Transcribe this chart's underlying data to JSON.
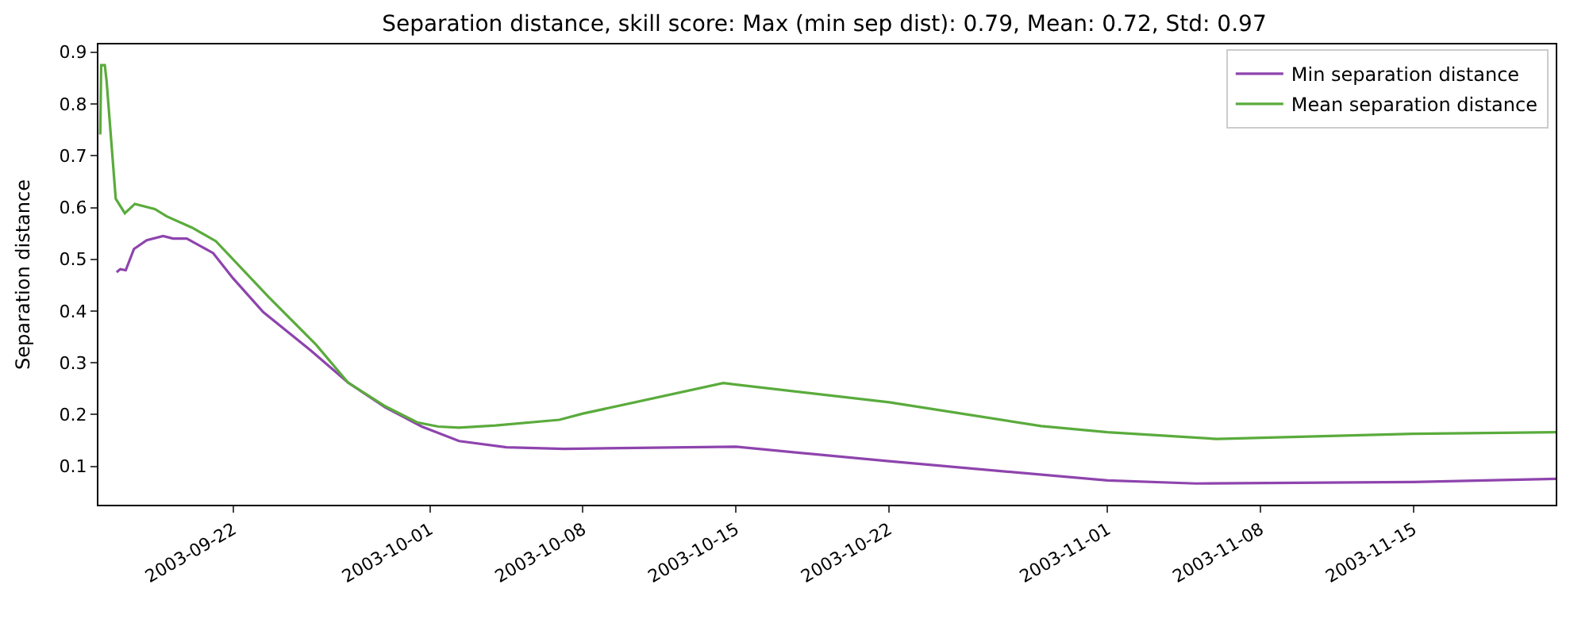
{
  "chart_data": {
    "type": "line",
    "title": "Separation distance, skill score: Max (min sep dist): 0.79, Mean: 0.72, Std: 0.97",
    "ylabel": "Separation distance",
    "series": [
      {
        "name": "Min separation distance",
        "color": "#8e44ad",
        "x": [
          "2003-09-16T16:00",
          "2003-09-16T20:00",
          "2003-09-17T02:00",
          "2003-09-17T11:00",
          "2003-09-18T01:00",
          "2003-09-18T19:00",
          "2003-09-19T06:00",
          "2003-09-19T21:00",
          "2003-09-21T02:00",
          "2003-09-22",
          "2003-09-23T09:00",
          "2003-09-25T13:00",
          "2003-09-27T06:00",
          "2003-09-28T23:00",
          "2003-09-30T15:00",
          "2003-10-02T08:00",
          "2003-10-04T12:00",
          "2003-10-07T03:00",
          "2003-10-15",
          "2003-10-22",
          "2003-11-01",
          "2003-11-05T01:00",
          "2003-11-15",
          "2003-11-21T12:00"
        ],
        "values": [
          0.475,
          0.481,
          0.479,
          0.52,
          0.537,
          0.545,
          0.54,
          0.54,
          0.512,
          0.463,
          0.398,
          0.324,
          0.262,
          0.214,
          0.177,
          0.149,
          0.137,
          0.134,
          0.138,
          0.11,
          0.073,
          0.067,
          0.07,
          0.076
        ]
      },
      {
        "name": "Mean separation distance",
        "color": "#5aab3c",
        "x": [
          "2003-09-15T22:00",
          "2003-09-15T23:00",
          "2003-09-16T03:00",
          "2003-09-16T05:00",
          "2003-09-16T15:00",
          "2003-09-17T01:00",
          "2003-09-17T12:00",
          "2003-09-18T10:00",
          "2003-09-18T23:00",
          "2003-09-20T03:00",
          "2003-09-21T05:00",
          "2003-09-23T15:00",
          "2003-09-25T19:00",
          "2003-09-27T06:00",
          "2003-09-28T23:00",
          "2003-09-30T10:00",
          "2003-10-01T09:00",
          "2003-10-02T08:00",
          "2003-10-04T00:00",
          "2003-10-06T22:00",
          "2003-10-08",
          "2003-10-14T10:00",
          "2003-10-15",
          "2003-10-22",
          "2003-10-28T23:00",
          "2003-11-01",
          "2003-11-06",
          "2003-11-15",
          "2003-11-21T12:00"
        ],
        "values": [
          0.741,
          0.875,
          0.875,
          0.844,
          0.617,
          0.589,
          0.607,
          0.597,
          0.583,
          0.561,
          0.535,
          0.427,
          0.335,
          0.262,
          0.216,
          0.185,
          0.177,
          0.175,
          0.179,
          0.19,
          0.202,
          0.261,
          0.258,
          0.224,
          0.178,
          0.166,
          0.153,
          0.163,
          0.166
        ]
      }
    ],
    "xlim": [
      "2003-09-15T20:00",
      "2003-11-21T12:00"
    ],
    "xticks": [
      "2003-09-22",
      "2003-10-01",
      "2003-10-08",
      "2003-10-15",
      "2003-10-22",
      "2003-11-01",
      "2003-11-08",
      "2003-11-15"
    ],
    "ylim": [
      0.026,
      0.915
    ],
    "yticks": [
      0.1,
      0.2,
      0.3,
      0.4,
      0.5,
      0.6,
      0.7,
      0.8,
      0.9
    ],
    "legend": "top right"
  }
}
